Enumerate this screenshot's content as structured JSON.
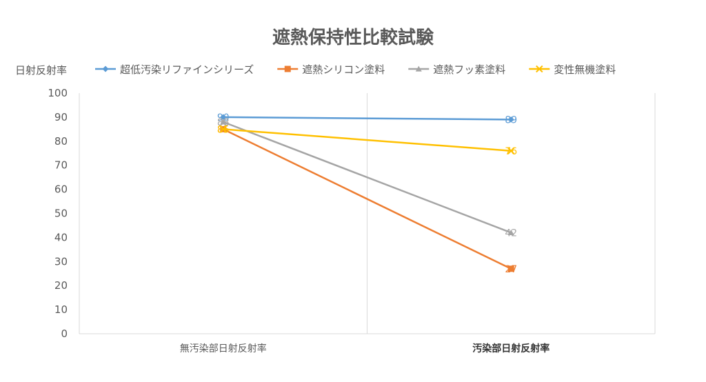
{
  "chart_data": {
    "type": "line",
    "title": "遮熱保持性比較試験",
    "ylabel": "日射反射率",
    "xlabel": "",
    "categories": [
      "無汚染部日射反射率",
      "汚染部日射反射率"
    ],
    "ylim": [
      0,
      100
    ],
    "yticks": [
      0,
      10,
      20,
      30,
      40,
      50,
      60,
      70,
      80,
      90,
      100
    ],
    "grid": false,
    "legend_position": "top",
    "series": [
      {
        "name": "超低汚染リファインシリーズ",
        "values": [
          90,
          89
        ],
        "color": "#5B9BD5",
        "marker": "diamond",
        "labels": [
          "90",
          "89"
        ]
      },
      {
        "name": "遮熱シリコン塗料",
        "values": [
          85,
          27
        ],
        "color": "#ED7D31",
        "marker": "square",
        "labels": [
          "85",
          "27"
        ]
      },
      {
        "name": "遮熱フッ素塗料",
        "values": [
          88,
          42
        ],
        "color": "#A5A5A5",
        "marker": "triangle",
        "labels": [
          "88",
          "42"
        ]
      },
      {
        "name": "変性無機塗料",
        "values": [
          85,
          76
        ],
        "color": "#FFC000",
        "marker": "x",
        "labels": [
          "85",
          "76"
        ]
      }
    ]
  }
}
